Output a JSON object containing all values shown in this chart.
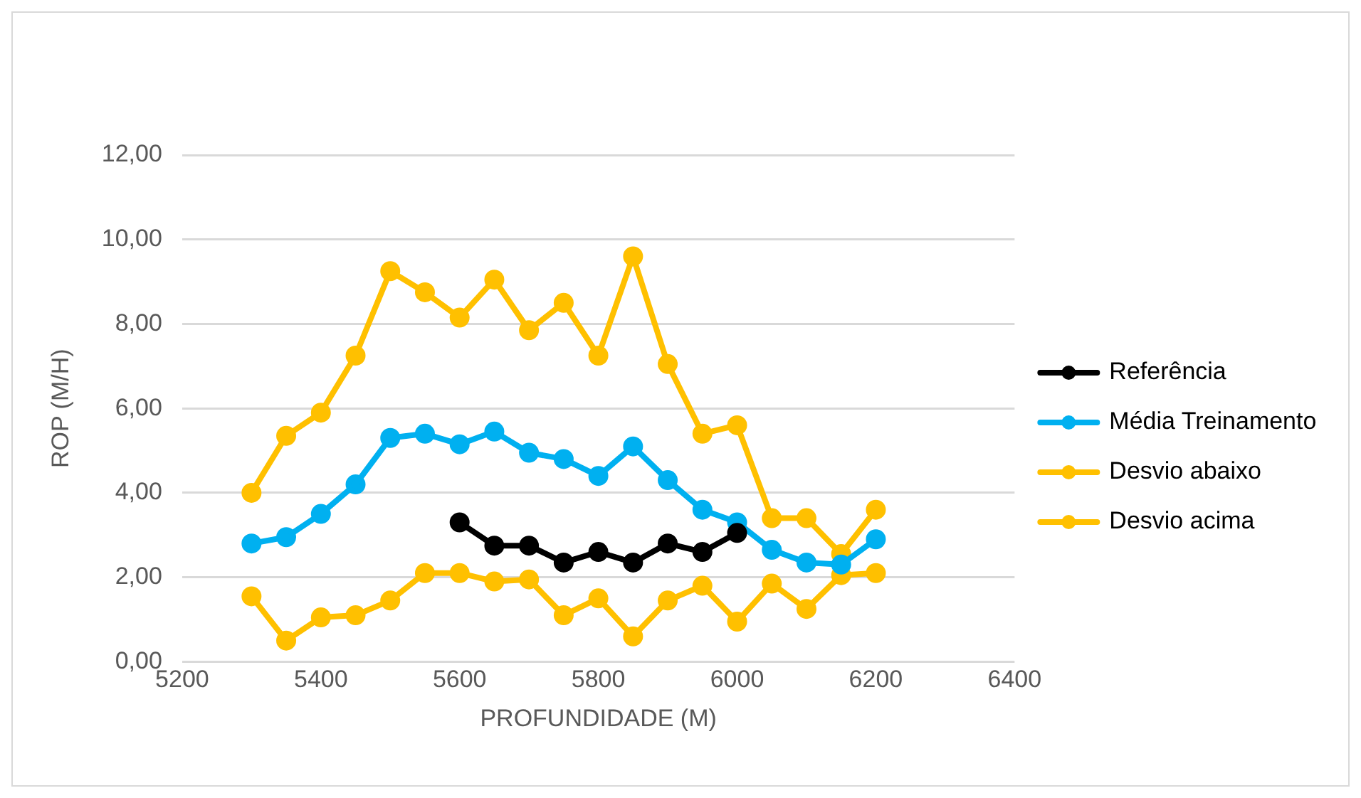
{
  "chart_data": {
    "type": "line",
    "xlabel": "PROFUNDIDADE (M)",
    "ylabel": "ROP (M/H)",
    "xlim": [
      5200,
      6400
    ],
    "xticks": [
      5200,
      5400,
      5600,
      5800,
      6000,
      6200,
      6400
    ],
    "ylim": [
      0,
      12
    ],
    "yticks": [
      {
        "value": 0,
        "label": "0,00"
      },
      {
        "value": 2,
        "label": "2,00"
      },
      {
        "value": 4,
        "label": "4,00"
      },
      {
        "value": 6,
        "label": "6,00"
      },
      {
        "value": 8,
        "label": "8,00"
      },
      {
        "value": 10,
        "label": "10,00"
      },
      {
        "value": 12,
        "label": "12,00"
      }
    ],
    "grid": "y",
    "legend": "right",
    "marker": "circle",
    "line_style": "solid",
    "series": [
      {
        "name": "Referência",
        "color": "#000000",
        "x": [
          5600,
          5650,
          5700,
          5750,
          5800,
          5850,
          5900,
          5950,
          6000
        ],
        "values": [
          3.3,
          2.75,
          2.75,
          2.35,
          2.6,
          2.35,
          2.8,
          2.6,
          3.05
        ]
      },
      {
        "name": "Média Treinamento",
        "color": "#00b0f0",
        "x": [
          5300,
          5350,
          5400,
          5450,
          5500,
          5550,
          5600,
          5650,
          5700,
          5750,
          5800,
          5850,
          5900,
          5950,
          6000,
          6050,
          6100,
          6150,
          6200
        ],
        "values": [
          2.8,
          2.95,
          3.5,
          4.2,
          5.3,
          5.4,
          5.15,
          5.45,
          4.95,
          4.8,
          4.4,
          5.1,
          4.3,
          3.6,
          3.3,
          2.65,
          2.35,
          2.3,
          2.9
        ]
      },
      {
        "name": "Desvio abaixo",
        "color": "#ffc000",
        "x": [
          5300,
          5350,
          5400,
          5450,
          5500,
          5550,
          5600,
          5650,
          5700,
          5750,
          5800,
          5850,
          5900,
          5950,
          6000,
          6050,
          6100,
          6150,
          6200
        ],
        "values": [
          1.55,
          0.5,
          1.05,
          1.1,
          1.45,
          2.1,
          2.1,
          1.9,
          1.95,
          1.1,
          1.5,
          0.6,
          1.45,
          1.8,
          0.95,
          1.85,
          1.25,
          2.05,
          2.1
        ]
      },
      {
        "name": "Desvio acima",
        "color": "#ffc000",
        "x": [
          5300,
          5350,
          5400,
          5450,
          5500,
          5550,
          5600,
          5650,
          5700,
          5750,
          5800,
          5850,
          5900,
          5950,
          6000,
          6050,
          6100,
          6150,
          6200
        ],
        "values": [
          4.0,
          5.35,
          5.9,
          7.25,
          9.25,
          8.75,
          8.15,
          9.05,
          7.85,
          8.5,
          7.25,
          9.6,
          7.05,
          5.4,
          5.6,
          3.4,
          3.4,
          2.55,
          3.6
        ]
      }
    ]
  }
}
